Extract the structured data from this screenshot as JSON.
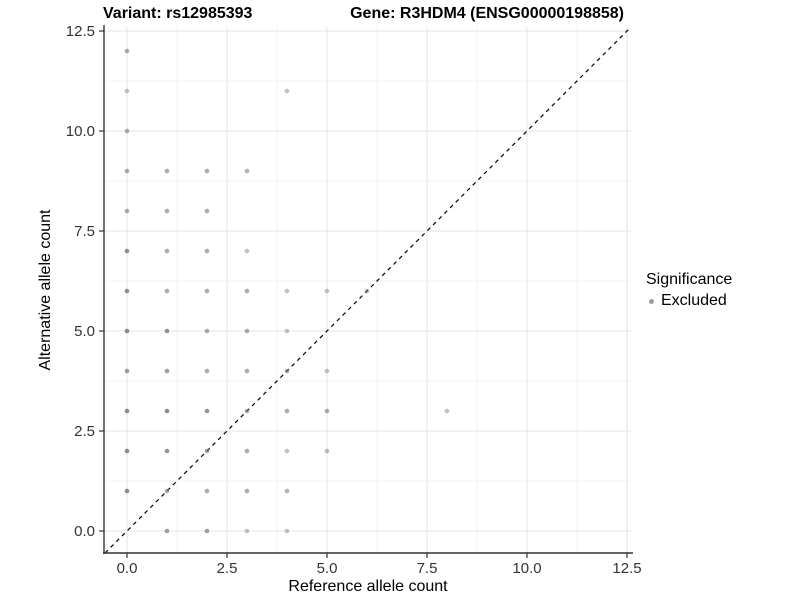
{
  "chart_data": {
    "type": "scatter",
    "titles": {
      "left": "Variant: rs12985393",
      "right": "Gene: R3HDM4 (ENSG00000198858)"
    },
    "xlabel": "Reference allele count",
    "ylabel": "Alternative allele count",
    "xlim": [
      -0.575,
      12.6
    ],
    "ylim": [
      -0.55,
      12.6
    ],
    "xticks": [
      0,
      2.5,
      5,
      7.5,
      10,
      12.5
    ],
    "yticks": [
      0,
      2.5,
      5,
      7.5,
      10,
      12.5
    ],
    "xtick_labels": [
      "0.0",
      "2.5",
      "5.0",
      "7.5",
      "10.0",
      "12.5"
    ],
    "ytick_labels": [
      "0.0",
      "2.5",
      "5.0",
      "7.5",
      "10.0",
      "12.5"
    ],
    "minor_xticks": [
      1.25,
      3.75,
      6.25,
      8.75,
      11.25
    ],
    "minor_yticks": [
      1.25,
      3.75,
      6.25,
      8.75,
      11.25
    ],
    "grid": true,
    "identity_line": {
      "slope": 1,
      "intercept": 0,
      "style": "dashed",
      "color": "#000000"
    },
    "legend": {
      "title": "Significance",
      "position": "right",
      "entries": [
        {
          "label": "Excluded",
          "color": "#9e9e9e"
        }
      ]
    },
    "point_color": "#787878",
    "point_radius": 2.3,
    "series": [
      {
        "name": "Excluded",
        "points": [
          {
            "x": 0,
            "y": 12,
            "alpha": 0.62
          },
          {
            "x": 0,
            "y": 11,
            "alpha": 0.45
          },
          {
            "x": 4,
            "y": 11,
            "alpha": 0.45
          },
          {
            "x": 0,
            "y": 10,
            "alpha": 0.62
          },
          {
            "x": 0,
            "y": 9,
            "alpha": 0.62
          },
          {
            "x": 1,
            "y": 9,
            "alpha": 0.62
          },
          {
            "x": 2,
            "y": 9,
            "alpha": 0.62
          },
          {
            "x": 3,
            "y": 9,
            "alpha": 0.55
          },
          {
            "x": 0,
            "y": 8,
            "alpha": 0.62
          },
          {
            "x": 1,
            "y": 8,
            "alpha": 0.62
          },
          {
            "x": 2,
            "y": 8,
            "alpha": 0.62
          },
          {
            "x": 0,
            "y": 7,
            "alpha": 0.8
          },
          {
            "x": 1,
            "y": 7,
            "alpha": 0.62
          },
          {
            "x": 2,
            "y": 7,
            "alpha": 0.62
          },
          {
            "x": 3,
            "y": 7,
            "alpha": 0.45
          },
          {
            "x": 0,
            "y": 6,
            "alpha": 0.8
          },
          {
            "x": 1,
            "y": 6,
            "alpha": 0.62
          },
          {
            "x": 2,
            "y": 6,
            "alpha": 0.62
          },
          {
            "x": 3,
            "y": 6,
            "alpha": 0.62
          },
          {
            "x": 4,
            "y": 6,
            "alpha": 0.45
          },
          {
            "x": 5,
            "y": 6,
            "alpha": 0.45
          },
          {
            "x": 6,
            "y": 6,
            "alpha": 0.45
          },
          {
            "x": 0,
            "y": 5,
            "alpha": 0.85
          },
          {
            "x": 1,
            "y": 5,
            "alpha": 0.8
          },
          {
            "x": 2,
            "y": 5,
            "alpha": 0.62
          },
          {
            "x": 3,
            "y": 5,
            "alpha": 0.62
          },
          {
            "x": 4,
            "y": 5,
            "alpha": 0.45
          },
          {
            "x": 0,
            "y": 4,
            "alpha": 0.7
          },
          {
            "x": 1,
            "y": 4,
            "alpha": 0.7
          },
          {
            "x": 2,
            "y": 4,
            "alpha": 0.62
          },
          {
            "x": 3,
            "y": 4,
            "alpha": 0.62
          },
          {
            "x": 4,
            "y": 4,
            "alpha": 0.62
          },
          {
            "x": 5,
            "y": 4,
            "alpha": 0.45
          },
          {
            "x": 0,
            "y": 3,
            "alpha": 0.85
          },
          {
            "x": 1,
            "y": 3,
            "alpha": 0.85
          },
          {
            "x": 2,
            "y": 3,
            "alpha": 0.8
          },
          {
            "x": 3,
            "y": 3,
            "alpha": 0.62
          },
          {
            "x": 4,
            "y": 3,
            "alpha": 0.62
          },
          {
            "x": 5,
            "y": 3,
            "alpha": 0.62
          },
          {
            "x": 8,
            "y": 3,
            "alpha": 0.45
          },
          {
            "x": 0,
            "y": 2,
            "alpha": 0.85
          },
          {
            "x": 1,
            "y": 2,
            "alpha": 0.8
          },
          {
            "x": 2,
            "y": 2,
            "alpha": 0.62
          },
          {
            "x": 3,
            "y": 2,
            "alpha": 0.62
          },
          {
            "x": 4,
            "y": 2,
            "alpha": 0.45
          },
          {
            "x": 5,
            "y": 2,
            "alpha": 0.5
          },
          {
            "x": 0,
            "y": 1,
            "alpha": 0.85
          },
          {
            "x": 1,
            "y": 1,
            "alpha": 0.62
          },
          {
            "x": 2,
            "y": 1,
            "alpha": 0.62
          },
          {
            "x": 3,
            "y": 1,
            "alpha": 0.62
          },
          {
            "x": 4,
            "y": 1,
            "alpha": 0.55
          },
          {
            "x": 1,
            "y": 0,
            "alpha": 0.7
          },
          {
            "x": 2,
            "y": 0,
            "alpha": 0.7
          },
          {
            "x": 3,
            "y": 0,
            "alpha": 0.45
          },
          {
            "x": 4,
            "y": 0,
            "alpha": 0.45
          }
        ]
      }
    ],
    "style": {
      "major_grid_color": "#e4e4e4",
      "minor_grid_color": "#f1f1f1",
      "axis_line_color": "#333333",
      "tick_label_color": "#333333",
      "background": "#ffffff"
    }
  }
}
